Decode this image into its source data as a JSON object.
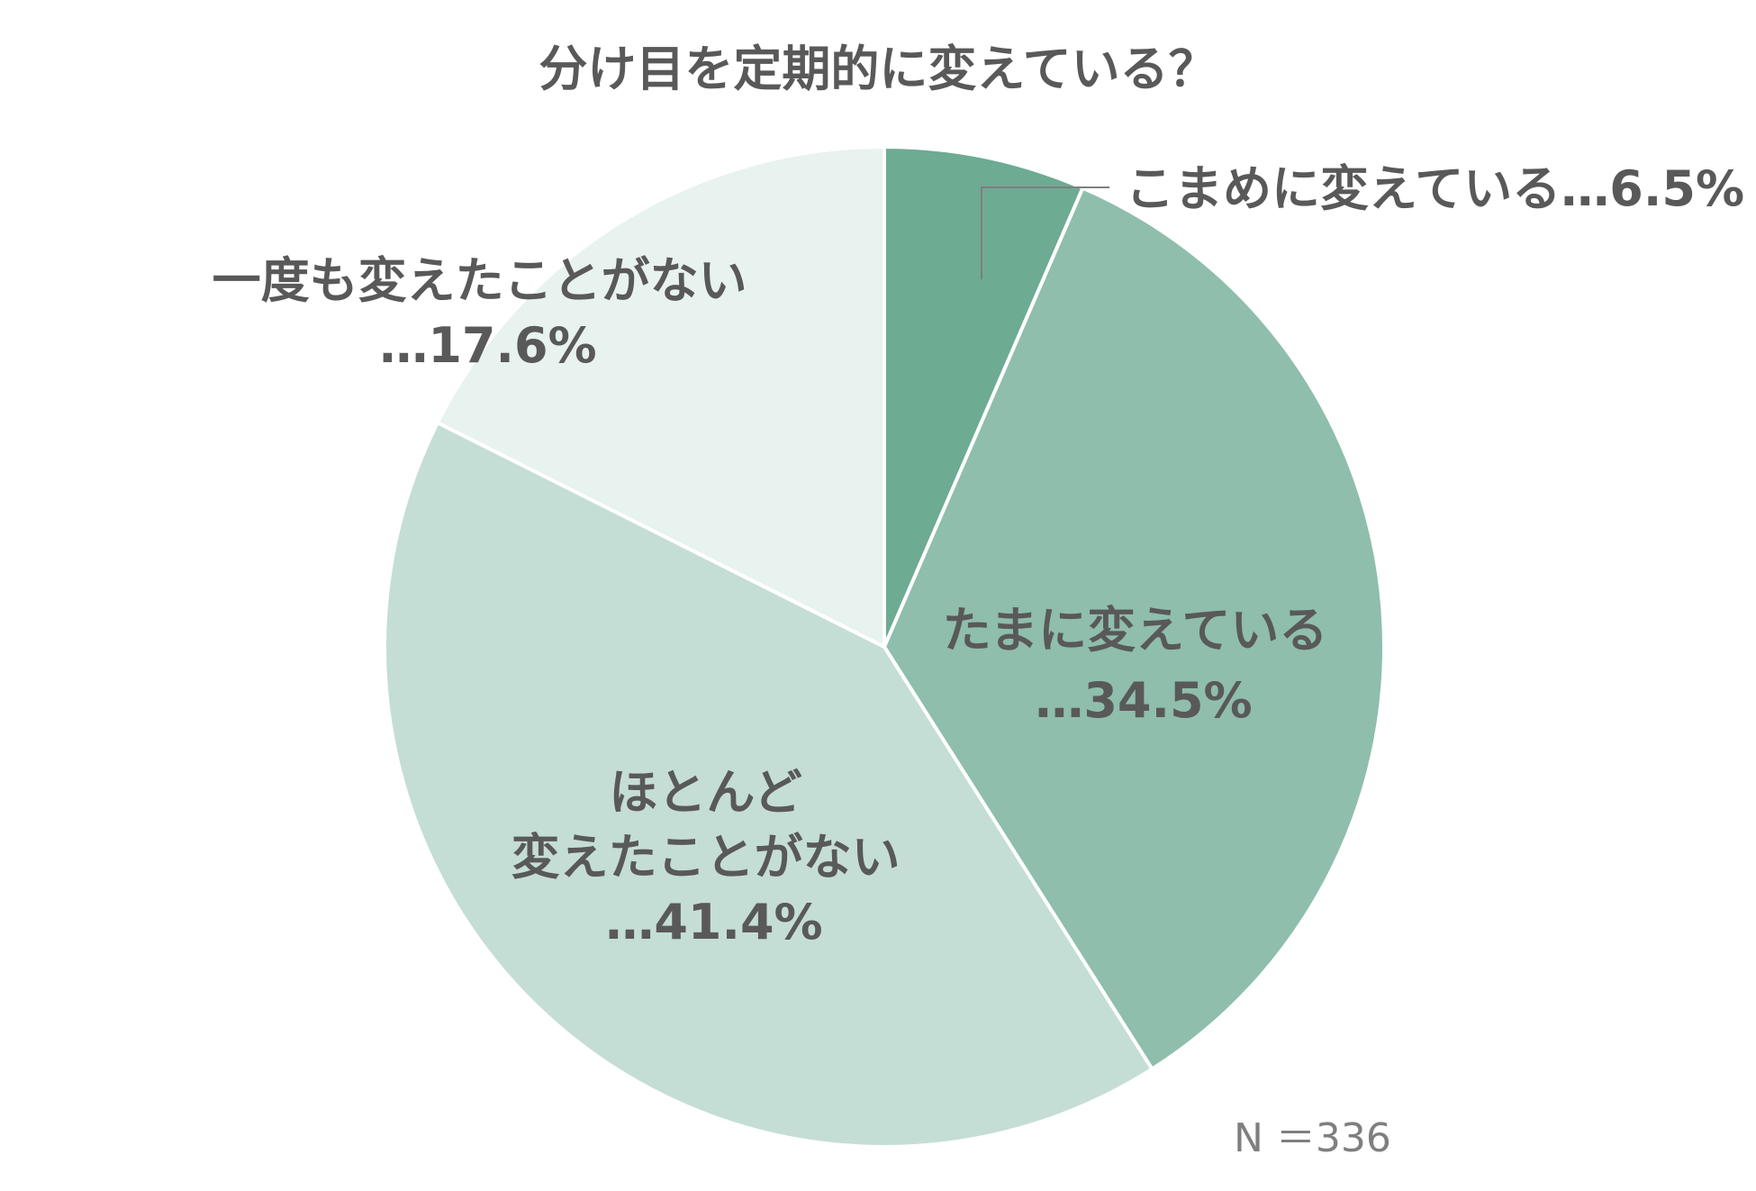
{
  "chart_data": {
    "type": "pie",
    "title": "分け目を定期的に変えている？",
    "slices": [
      {
        "label": "こまめに変えている",
        "display": "こまめに変えている…6.5%",
        "value": 6.5,
        "color": "#6dab92"
      },
      {
        "label": "たまに変えている",
        "display_lines": [
          "たまに変えている",
          "…34.5%"
        ],
        "value": 34.5,
        "color": "#8fbeac"
      },
      {
        "label": "ほとんど変えたことがない",
        "display_lines": [
          "ほとんど",
          "変えたことがない",
          "…41.4%"
        ],
        "value": 41.4,
        "color": "#c5ded5"
      },
      {
        "label": "一度も変えたことがない",
        "display_lines": [
          "一度も変えたことがない",
          "…17.6%"
        ],
        "value": 17.6,
        "color": "#e8f2ee"
      }
    ],
    "note": "N ＝336",
    "start": "12 o'clock",
    "direction": "clockwise"
  }
}
